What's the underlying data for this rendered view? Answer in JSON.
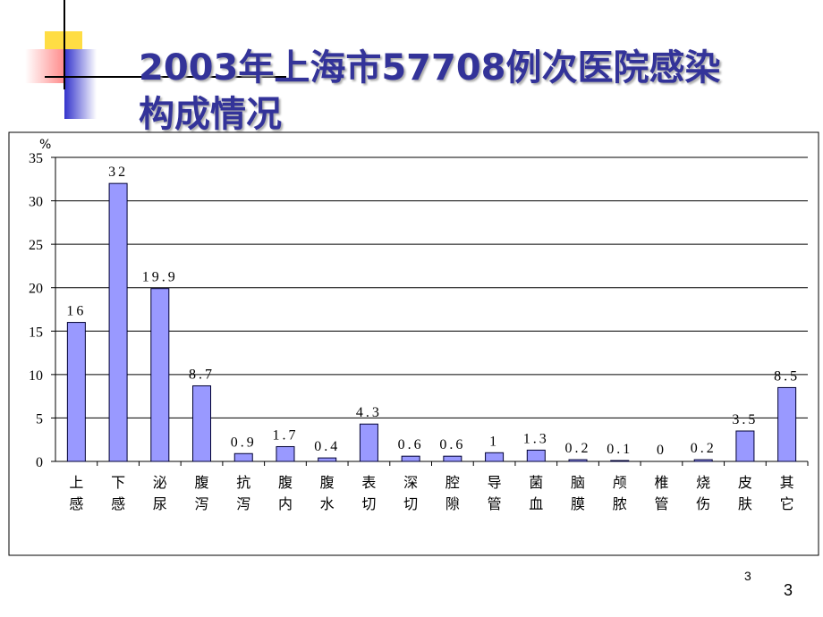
{
  "chart_data": {
    "type": "bar",
    "title": "2003年上海市57708例次医院感染构成情况",
    "y_unit": "%",
    "categories": [
      "上感",
      "下感",
      "泌尿",
      "腹泻",
      "抗泻",
      "腹内",
      "腹水",
      "表切",
      "深切",
      "腔隙",
      "导管",
      "菌血",
      "脑膜",
      "颅脓",
      "椎管",
      "烧伤",
      "皮肤",
      "其它"
    ],
    "values": [
      16,
      32,
      19.9,
      8.7,
      0.9,
      1.7,
      0.4,
      4.3,
      0.6,
      0.6,
      1,
      1.3,
      0.2,
      0.1,
      0,
      0.2,
      3.5,
      8.5
    ],
    "color": "#9999ff",
    "ylim": [
      0,
      35
    ],
    "yticks": [
      0,
      5,
      10,
      15,
      20,
      25,
      30,
      35
    ],
    "grid": true
  },
  "slide_numbers": [
    "3",
    "3"
  ]
}
